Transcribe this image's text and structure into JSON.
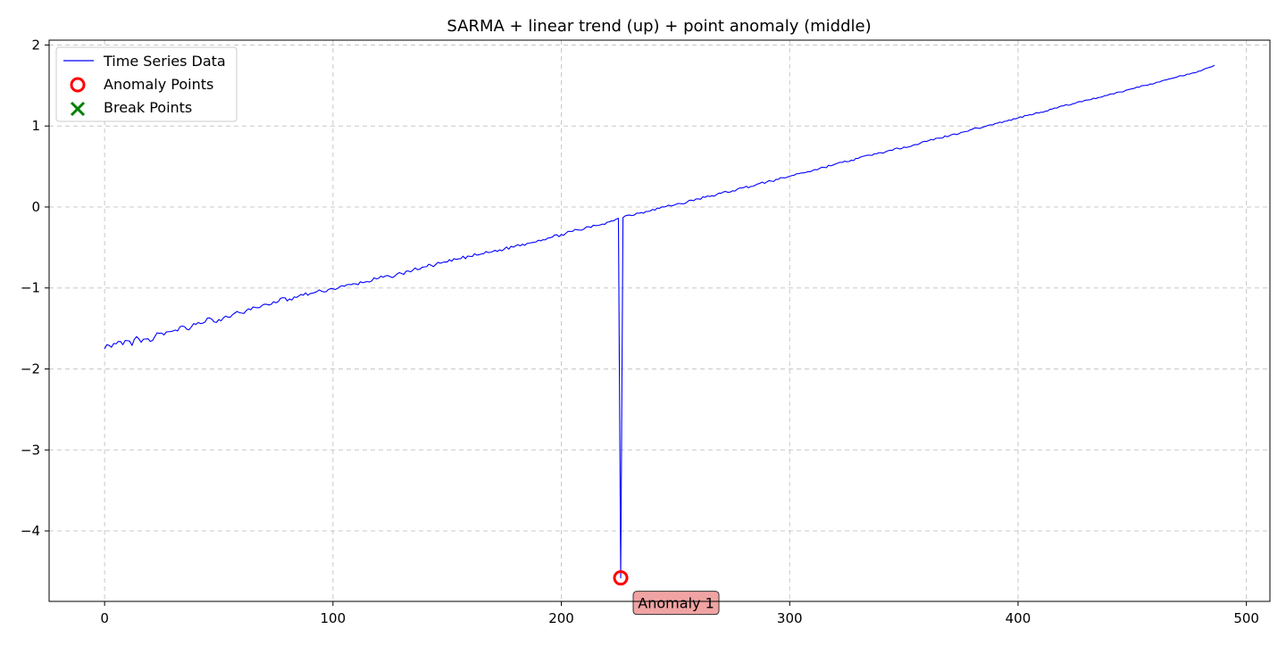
{
  "chart_data": {
    "type": "line",
    "title": "SARMA + linear trend (up) + point anomaly (middle)",
    "xlabel": "",
    "ylabel": "",
    "xlim": [
      -24.3,
      510.3
    ],
    "ylim": [
      -4.87,
      2.06
    ],
    "x_ticks": [
      0,
      100,
      200,
      300,
      400,
      500
    ],
    "y_ticks": [
      2,
      1,
      0,
      -1,
      -2,
      -3,
      -4
    ],
    "x_tick_labels": [
      "0",
      "100",
      "200",
      "300",
      "400",
      "500"
    ],
    "y_tick_labels": [
      "2",
      "1",
      "0",
      "−1",
      "−2",
      "−3",
      "−4"
    ],
    "grid": true,
    "legend_position": "top-left",
    "legend": [
      {
        "label": "Time Series Data",
        "kind": "line",
        "color": "#0000ff"
      },
      {
        "label": "Anomaly Points",
        "kind": "circle",
        "color": "#ff0000"
      },
      {
        "label": "Break Points",
        "kind": "x",
        "color": "#008000"
      }
    ],
    "series": [
      {
        "name": "Time Series Data",
        "color": "#0000ff",
        "x_start": 0,
        "x_end": 486,
        "y_start": -1.75,
        "y_end": 1.75,
        "noise_start": 0.04,
        "noise_end": 0.008,
        "points": [
          [
            0,
            -1.75
          ],
          [
            1,
            -1.7
          ],
          [
            2,
            -1.71
          ],
          [
            5,
            -1.69
          ],
          [
            6,
            -1.66
          ],
          [
            8,
            -1.7
          ],
          [
            10,
            -1.65
          ],
          [
            12,
            -1.71
          ],
          [
            14,
            -1.6
          ],
          [
            16,
            -1.67
          ],
          [
            18,
            -1.63
          ],
          [
            20,
            -1.66
          ],
          [
            22,
            -1.6
          ],
          [
            24,
            -1.56
          ],
          [
            26,
            -1.58
          ],
          [
            28,
            -1.54
          ],
          [
            30,
            -1.53
          ],
          [
            32,
            -1.53
          ],
          [
            34,
            -1.47
          ],
          [
            36,
            -1.51
          ],
          [
            38,
            -1.48
          ],
          [
            40,
            -1.45
          ],
          [
            42,
            -1.44
          ],
          [
            44,
            -1.42
          ],
          [
            46,
            -1.37
          ],
          [
            48,
            -1.42
          ],
          [
            50,
            -1.39
          ],
          [
            52,
            -1.37
          ],
          [
            54,
            -1.36
          ],
          [
            56,
            -1.33
          ],
          [
            58,
            -1.29
          ],
          [
            60,
            -1.31
          ],
          [
            62,
            -1.28
          ],
          [
            64,
            -1.27
          ],
          [
            66,
            -1.24
          ],
          [
            68,
            -1.24
          ],
          [
            70,
            -1.2
          ],
          [
            72,
            -1.21
          ],
          [
            74,
            -1.17
          ],
          [
            76,
            -1.17
          ],
          [
            78,
            -1.12
          ],
          [
            80,
            -1.16
          ],
          [
            85,
            -1.1
          ],
          [
            90,
            -1.07
          ],
          [
            95,
            -1.04
          ],
          [
            100,
            -1.01
          ],
          [
            105,
            -0.98
          ],
          [
            110,
            -0.95
          ],
          [
            115,
            -0.92
          ],
          [
            120,
            -0.88
          ],
          [
            125,
            -0.86
          ],
          [
            130,
            -0.82
          ],
          [
            135,
            -0.78
          ],
          [
            140,
            -0.74
          ],
          [
            145,
            -0.71
          ],
          [
            150,
            -0.68
          ],
          [
            155,
            -0.64
          ],
          [
            160,
            -0.61
          ],
          [
            165,
            -0.58
          ],
          [
            170,
            -0.55
          ],
          [
            175,
            -0.52
          ],
          [
            180,
            -0.48
          ],
          [
            185,
            -0.45
          ],
          [
            190,
            -0.41
          ],
          [
            195,
            -0.38
          ],
          [
            200,
            -0.34
          ],
          [
            205,
            -0.3
          ],
          [
            210,
            -0.27
          ],
          [
            215,
            -0.23
          ],
          [
            220,
            -0.19
          ],
          [
            223,
            -0.17
          ],
          [
            224,
            -0.15
          ],
          [
            225,
            -0.14
          ],
          [
            226,
            -4.58
          ],
          [
            227,
            -0.13
          ],
          [
            228,
            -0.11
          ],
          [
            230,
            -0.1
          ],
          [
            235,
            -0.07
          ],
          [
            240,
            -0.03
          ],
          [
            245,
            0.0
          ],
          [
            250,
            0.03
          ],
          [
            255,
            0.06
          ],
          [
            260,
            0.1
          ],
          [
            265,
            0.13
          ],
          [
            270,
            0.17
          ],
          [
            275,
            0.2
          ],
          [
            280,
            0.24
          ],
          [
            285,
            0.27
          ],
          [
            290,
            0.31
          ],
          [
            295,
            0.34
          ],
          [
            300,
            0.38
          ],
          [
            305,
            0.42
          ],
          [
            310,
            0.45
          ],
          [
            315,
            0.49
          ],
          [
            320,
            0.53
          ],
          [
            325,
            0.56
          ],
          [
            330,
            0.6
          ],
          [
            335,
            0.64
          ],
          [
            340,
            0.67
          ],
          [
            345,
            0.7
          ],
          [
            350,
            0.74
          ],
          [
            355,
            0.77
          ],
          [
            360,
            0.81
          ],
          [
            365,
            0.85
          ],
          [
            370,
            0.88
          ],
          [
            375,
            0.92
          ],
          [
            380,
            0.96
          ],
          [
            385,
            0.99
          ],
          [
            390,
            1.03
          ],
          [
            395,
            1.06
          ],
          [
            400,
            1.1
          ],
          [
            405,
            1.14
          ],
          [
            410,
            1.17
          ],
          [
            415,
            1.21
          ],
          [
            420,
            1.25
          ],
          [
            425,
            1.28
          ],
          [
            430,
            1.32
          ],
          [
            435,
            1.35
          ],
          [
            440,
            1.39
          ],
          [
            445,
            1.42
          ],
          [
            450,
            1.46
          ],
          [
            455,
            1.5
          ],
          [
            460,
            1.53
          ],
          [
            465,
            1.57
          ],
          [
            470,
            1.61
          ],
          [
            475,
            1.64
          ],
          [
            480,
            1.68
          ],
          [
            486,
            1.75
          ]
        ]
      }
    ],
    "anomalies": [
      {
        "x": 226,
        "y": -4.58,
        "label": "Anomaly 1",
        "color": "#ff0000"
      }
    ],
    "break_points": []
  }
}
